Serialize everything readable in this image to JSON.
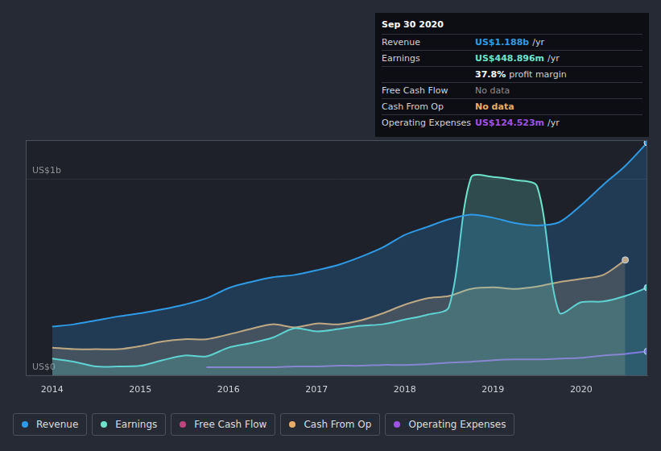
{
  "chart_data": {
    "type": "line",
    "x": [
      2014,
      2014.25,
      2014.5,
      2014.75,
      2015,
      2015.25,
      2015.5,
      2015.75,
      2016,
      2016.25,
      2016.5,
      2016.75,
      2017,
      2017.25,
      2017.5,
      2017.75,
      2018,
      2018.25,
      2018.5,
      2018.75,
      2019,
      2019.25,
      2019.5,
      2019.75,
      2020,
      2020.25,
      2020.5,
      2020.75
    ],
    "series": [
      {
        "name": "Revenue",
        "color": "#2f9be6",
        "type": "area",
        "values": [
          0.251,
          0.263,
          0.283,
          0.303,
          0.319,
          0.339,
          0.363,
          0.395,
          0.447,
          0.478,
          0.502,
          0.514,
          0.538,
          0.566,
          0.606,
          0.654,
          0.718,
          0.758,
          0.797,
          0.821,
          0.805,
          0.778,
          0.766,
          0.782,
          0.869,
          0.973,
          1.069,
          1.188
        ]
      },
      {
        "name": "Earnings",
        "color": "#6de3cc",
        "type": "area",
        "values": [
          0.088,
          0.072,
          0.048,
          0.048,
          0.052,
          0.08,
          0.104,
          0.1,
          0.144,
          0.167,
          0.195,
          0.243,
          0.227,
          0.239,
          0.255,
          0.263,
          0.287,
          0.311,
          0.351,
          1.009,
          1.013,
          0.997,
          0.965,
          0.323,
          0.375,
          0.379,
          0.407,
          0.449
        ]
      },
      {
        "name": "Free Cash Flow",
        "color": "#c2447e",
        "type": "area",
        "values": [
          null,
          null,
          null,
          null,
          null,
          null,
          null,
          null,
          null,
          null,
          null,
          null,
          null,
          null,
          null,
          null,
          null,
          null,
          null,
          null,
          null,
          null,
          null,
          null,
          null,
          null,
          null,
          null
        ]
      },
      {
        "name": "Cash From Op",
        "color": "#e8ad68",
        "type": "area",
        "values": [
          0.144,
          0.136,
          0.136,
          0.136,
          0.152,
          0.175,
          0.187,
          0.187,
          0.211,
          0.239,
          0.263,
          0.247,
          0.267,
          0.263,
          0.283,
          0.319,
          0.363,
          0.395,
          0.407,
          0.443,
          0.451,
          0.443,
          0.455,
          0.478,
          0.494,
          0.514,
          0.59,
          null
        ]
      },
      {
        "name": "Operating Expenses",
        "color": "#a052e6",
        "type": "line",
        "values": [
          null,
          null,
          null,
          null,
          null,
          null,
          null,
          0.044,
          0.044,
          0.044,
          0.044,
          0.048,
          0.048,
          0.052,
          0.052,
          0.056,
          0.056,
          0.06,
          0.068,
          0.072,
          0.08,
          0.084,
          0.084,
          0.088,
          0.092,
          0.104,
          0.112,
          0.125
        ]
      }
    ],
    "xlim": [
      2013.7,
      2020.75
    ],
    "xticks": [
      2014,
      2015,
      2016,
      2017,
      2018,
      2019,
      2020
    ],
    "ylim": [
      0,
      1.2
    ],
    "yticks": [
      {
        "value": 0,
        "label": "US$0"
      },
      {
        "value": 1,
        "label": "US$1b"
      }
    ],
    "grid": true,
    "legend": "bottom",
    "annotations": [
      {
        "title": "Sep 30 2020",
        "rows": [
          {
            "label": "Revenue",
            "value": "US$1.188b",
            "unit": "/yr"
          },
          {
            "label": "Earnings",
            "value": "US$448.896m",
            "unit": "/yr"
          },
          {
            "value": "37.8%",
            "unit": "profit margin"
          },
          {
            "label": "Free Cash Flow",
            "value": "No data"
          },
          {
            "label": "Cash From Op",
            "value": "No data"
          },
          {
            "label": "Operating Expenses",
            "value": "US$124.523m",
            "unit": "/yr"
          }
        ]
      }
    ]
  }
}
